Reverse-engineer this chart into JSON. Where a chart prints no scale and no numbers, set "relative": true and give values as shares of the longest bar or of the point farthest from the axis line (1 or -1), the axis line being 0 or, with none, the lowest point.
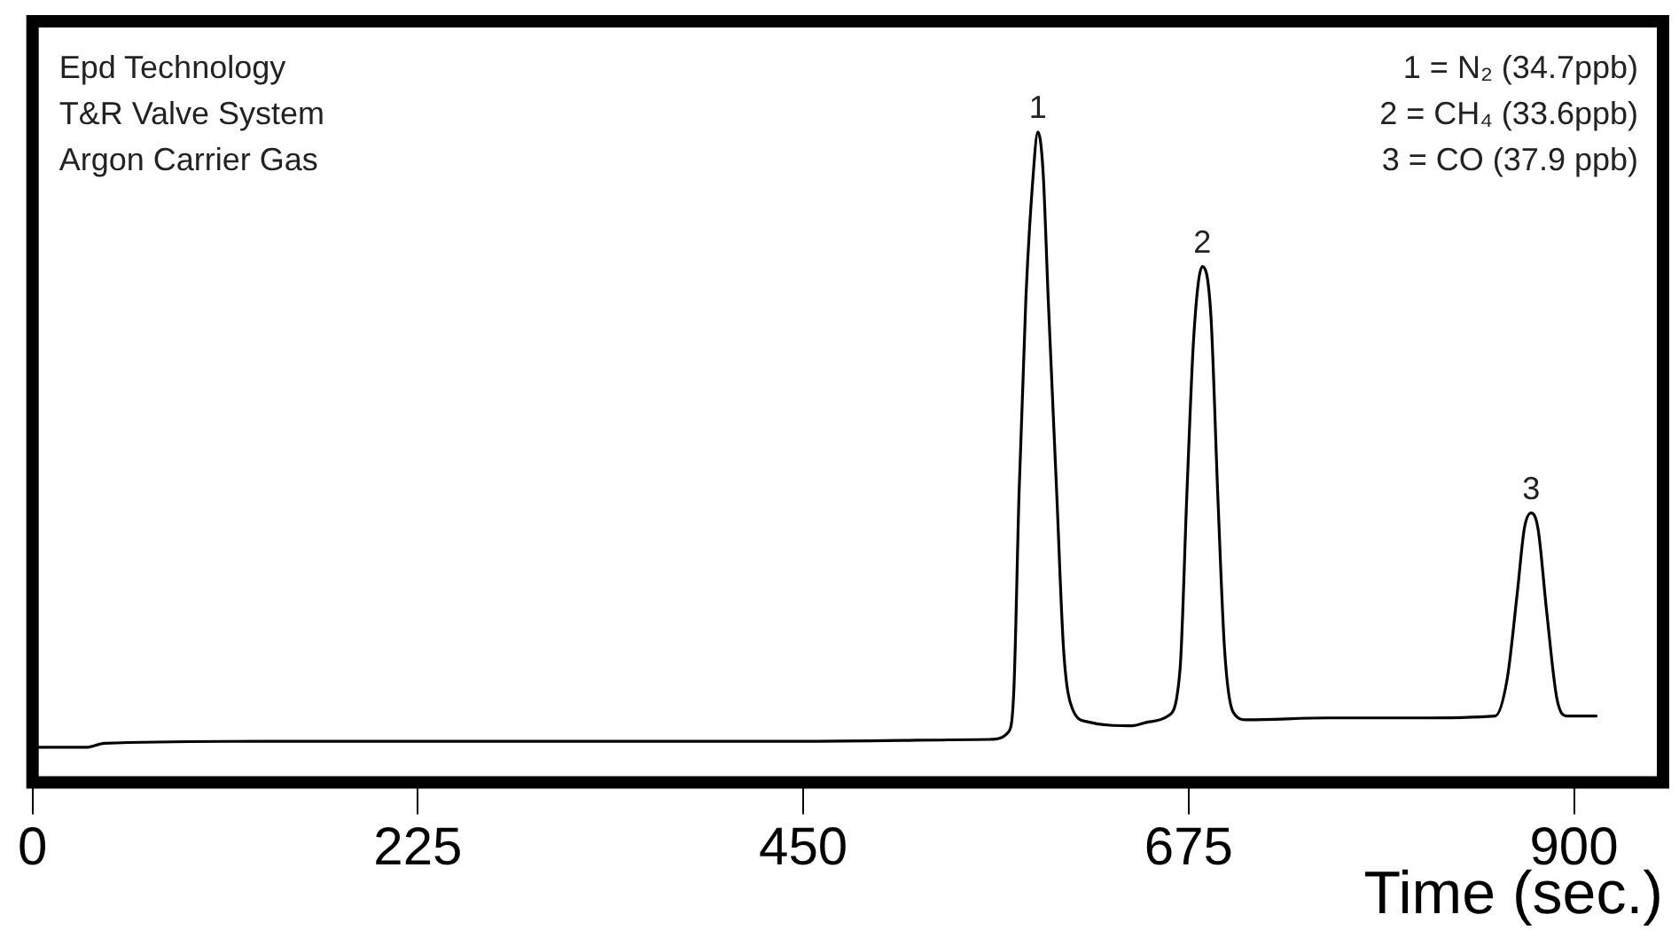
{
  "chart_data": {
    "type": "line",
    "relative": true,
    "xlabel": "Time (sec.)",
    "xlim": [
      0,
      952
    ],
    "xticks": [
      0,
      225,
      450,
      675,
      900
    ],
    "tick_labels": "x",
    "grid": false,
    "legend": false,
    "marker": "none",
    "line_style": "solid",
    "annotations": [
      "Epd Technology",
      "T&R Valve System",
      "Argon Carrier Gas",
      "1 = N₂ (34.7ppb)",
      "2 = CH₄ (33.6ppb)",
      "3 = CO (37.9 ppb)",
      {
        "text": "1",
        "x": 587,
        "y": 1
      },
      {
        "text": "2",
        "x": 683,
        "y": 0.793
      },
      {
        "text": "3",
        "x": 875,
        "y": 0.414
      }
    ],
    "series": [
      {
        "color": "#000000",
        "x": [
          0,
          32,
          42,
          135,
          291,
          446,
          559,
          570,
          573,
          576,
          580,
          584,
          587,
          590,
          593,
          598,
          602,
          607,
          616,
          642,
          652,
          663,
          670,
          674,
          678,
          683,
          688,
          692,
          696,
          701,
          709,
          756,
          808,
          854,
          861,
          867,
          871,
          875,
          879,
          884,
          890,
          896,
          913
        ],
        "values": [
          0.054,
          0.054,
          0.06,
          0.063,
          0.063,
          0.063,
          0.066,
          0.078,
          0.144,
          0.444,
          0.745,
          0.925,
          1,
          0.94,
          0.745,
          0.444,
          0.204,
          0.114,
          0.093,
          0.087,
          0.093,
          0.102,
          0.174,
          0.444,
          0.685,
          0.793,
          0.718,
          0.444,
          0.204,
          0.108,
          0.096,
          0.099,
          0.099,
          0.102,
          0.159,
          0.294,
          0.39,
          0.414,
          0.39,
          0.264,
          0.129,
          0.102,
          0.102
        ]
      }
    ]
  }
}
